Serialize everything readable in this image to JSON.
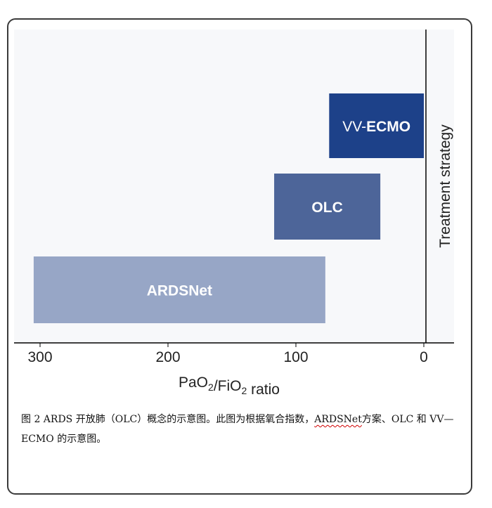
{
  "chart_data": {
    "type": "bar",
    "orientation": "horizontal-range",
    "xlabel": "PaO2/FiO2 ratio",
    "ylabel": "Treatment strategy",
    "x_axis": {
      "reversed": true,
      "range": [
        300,
        0
      ],
      "ticks": [
        300,
        200,
        100,
        0
      ]
    },
    "bars": [
      {
        "label": "ARDSNet",
        "start": 305,
        "end": 77,
        "color": "#97a6c6"
      },
      {
        "label": "OLC",
        "start": 117,
        "end": 34,
        "color": "#4d6599"
      },
      {
        "label": "VV-ECMO",
        "start": 74,
        "end": 0,
        "color": "#1d4189"
      }
    ],
    "grid": false,
    "legend": "none"
  },
  "caption": {
    "part1": "图 2 ARDS 开放肺（OLC）概念的示意图。此图为根据氧合指数，",
    "squiggle": "ARDSNet",
    "part2": "方案、OLC 和 VV—ECMO 的示意图。"
  }
}
